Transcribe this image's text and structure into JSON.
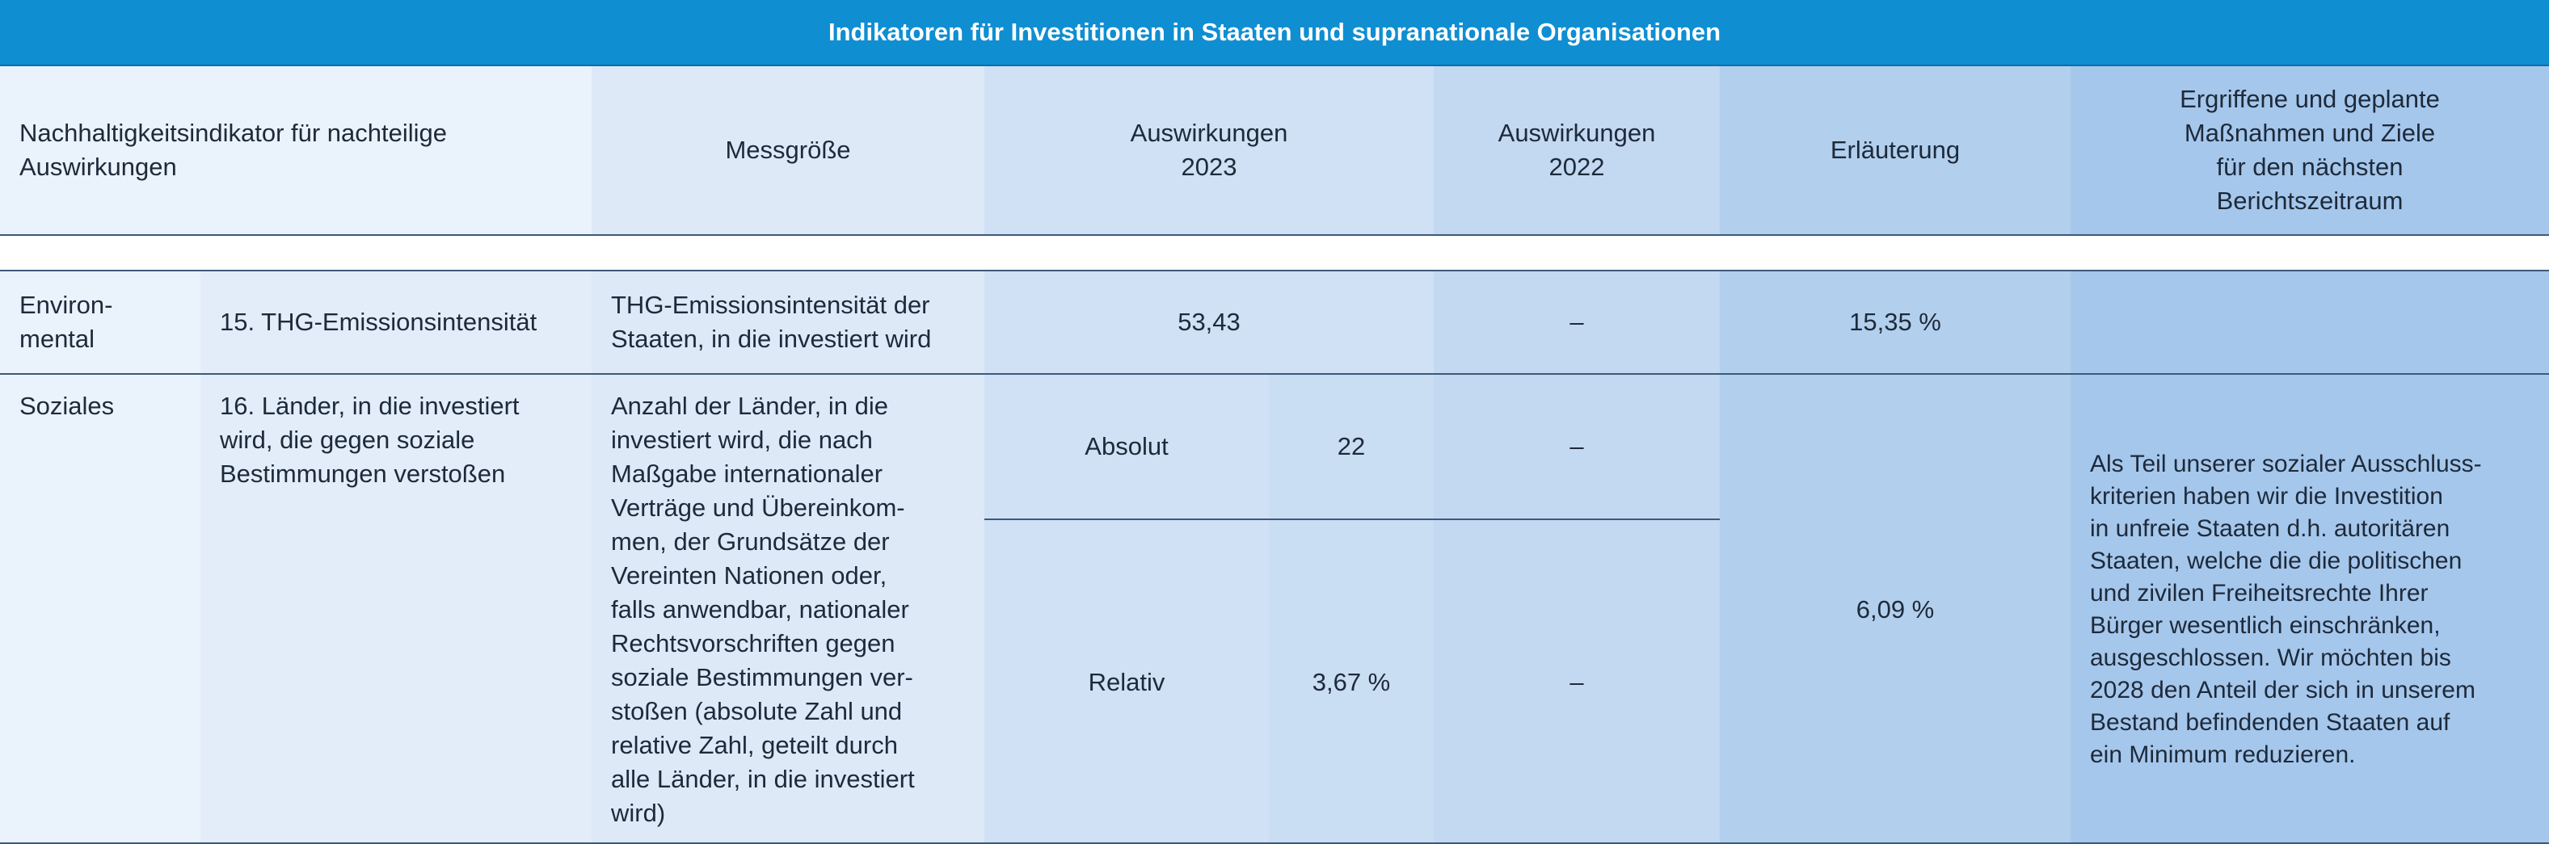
{
  "title": "Indikatoren für Investitionen in Staaten und supranationale Organisationen",
  "header": {
    "indicator": "Nachhaltigkeitsindikator für nachteilige\nAuswirkungen",
    "metric": "Messgröße",
    "impact2023": "Auswirkungen\n2023",
    "impact2022": "Auswirkungen\n2022",
    "explanation": "Erläuterung",
    "measures": "Ergriffene und geplante\nMaßnahmen und Ziele\nfür den nächsten\nBerichtszeitraum"
  },
  "rows": {
    "env": {
      "category": "Environ-\nmental",
      "indicator": "15. THG-Emissionsintensität",
      "metric": "THG-Emissionsintensität der\nStaaten, in die investiert wird",
      "impact2023": "53,43",
      "impact2022": "–",
      "explanation": "15,35 %"
    },
    "social": {
      "category": "Soziales",
      "indicator": "16. Länder, in die investiert\nwird, die gegen soziale\nBestimmungen verstoßen",
      "metric": "Anzahl der Länder, in die\ninvestiert wird, die nach\nMaßgabe internationaler\nVerträge und Übereinkom-\nmen, der Grundsätze der\nVereinten Nationen oder,\nfalls anwendbar, nationaler\nRechtsvorschriften gegen\nsoziale Bestimmungen ver-\nstoßen (absolute Zahl und\nrelative Zahl, geteilt durch\nalle Länder, in die investiert\nwird)",
      "absolute_label": "Absolut",
      "absolute_value": "22",
      "absolute_2022": "–",
      "relative_label": "Relativ",
      "relative_value": "3,67 %",
      "relative_2022": "–",
      "explanation": "6,09 %",
      "measures": "Als Teil unserer sozialer Ausschluss-\nkriterien haben wir die Investition\nin unfreie Staaten d.h. autoritären\nStaaten, welche die die politischen\nund zivilen Freiheitsrechte Ihrer\nBürger wesentlich einschränken,\nausgeschlossen. Wir möchten bis\n2028 den Anteil der sich in unserem\nBestand befindenden Staaten auf\nein Minimum reduzieren."
    }
  }
}
